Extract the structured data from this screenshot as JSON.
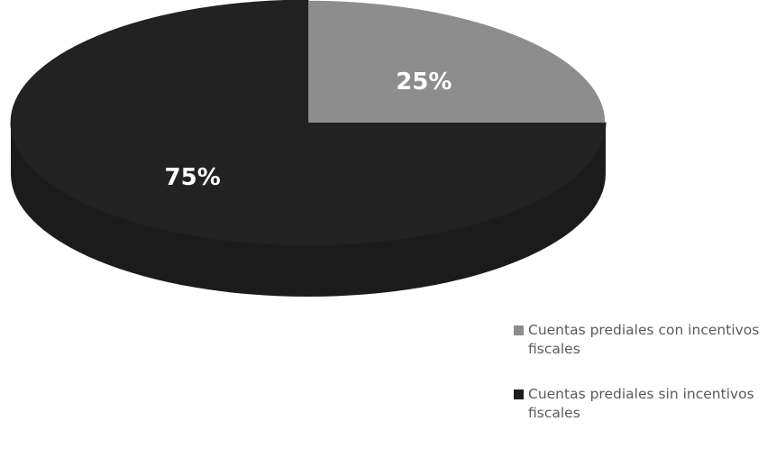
{
  "chart_data": {
    "type": "pie",
    "title": "",
    "slices": [
      {
        "label": "Cuentas prediales con incentivos fiscales",
        "value": 25,
        "display": "25%",
        "color": "#8d8d8d"
      },
      {
        "label": "Cuentas prediales sin incentivos fiscales",
        "value": 75,
        "display": "75%",
        "color": "#222222"
      }
    ],
    "legend_position": "bottom-right",
    "style": "3d"
  },
  "legend": {
    "items": [
      {
        "label": "Cuentas prediales con incentivos fiscales",
        "color": "#8d8d8d"
      },
      {
        "label": "Cuentas prediales sin incentivos fiscales",
        "color": "#1d1d1d"
      }
    ]
  }
}
